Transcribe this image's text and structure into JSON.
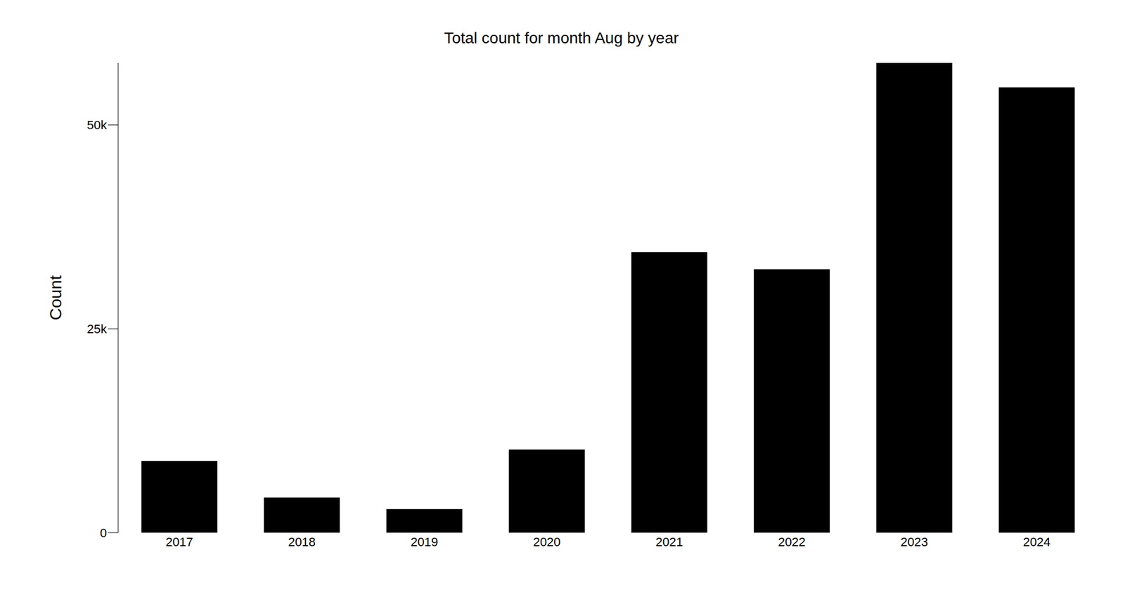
{
  "chart_data": {
    "type": "bar",
    "title": "Total count for month Aug by year",
    "y_label": "Count",
    "categories": [
      "2017",
      "2018",
      "2019",
      "2020",
      "2021",
      "2022",
      "2023",
      "2024"
    ],
    "values": [
      8800,
      4300,
      2900,
      10200,
      34400,
      32300,
      57600,
      54600
    ],
    "color": "#000000",
    "ylim": [
      0,
      57600
    ],
    "yticks": [
      0,
      {
        "value": 25000,
        "label": "25k"
      },
      {
        "value": 50000,
        "label": "50k"
      }
    ],
    "grid": false
  }
}
